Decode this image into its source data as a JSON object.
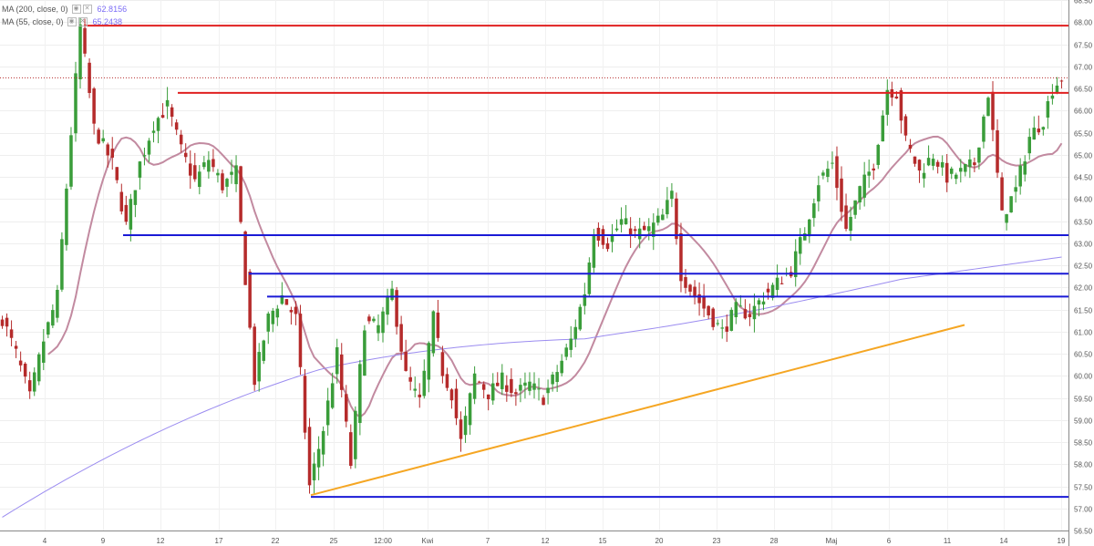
{
  "legend": {
    "ma200": {
      "label": "MA (200, close, 0)",
      "value": "62.8156",
      "color": "#7b6cf6"
    },
    "ma55": {
      "label": "MA (55, close, 0)",
      "value": "65.2438",
      "color": "#7b6cf6"
    }
  },
  "colors": {
    "up": "#3a9d3a",
    "down": "#b52b2b",
    "resistance": "#e02020",
    "support": "#1a1ad6",
    "trend": "#f5a623",
    "ma55": "#c28aa0",
    "ma200": "#9b8cf0",
    "last_price": "#b52b2b"
  },
  "chart_data": {
    "type": "candlestick",
    "y_axis": {
      "min": 56.5,
      "max": 68.5,
      "ticks": [
        "68.50",
        "68.00",
        "67.50",
        "67.00",
        "66.50",
        "66.00",
        "65.50",
        "65.00",
        "64.50",
        "64.00",
        "63.50",
        "63.00",
        "62.50",
        "62.00",
        "61.50",
        "61.00",
        "60.50",
        "60.00",
        "59.50",
        "59.00",
        "58.50",
        "58.00",
        "57.50",
        "57.00",
        "56.50"
      ]
    },
    "x_axis": {
      "labels": [
        "4",
        "9",
        "12",
        "17",
        "22",
        "25",
        "12:00",
        "Kwi",
        "7",
        "12",
        "15",
        "20",
        "23",
        "28",
        "Maj",
        "6",
        "11",
        "14",
        "19"
      ]
    },
    "grid": true,
    "price_levels": [
      {
        "value": 67.92,
        "label": "67.92",
        "role": "resistance"
      },
      {
        "value": 66.4,
        "label": "66.40",
        "role": "resistance"
      },
      {
        "value": 63.18,
        "label": "63.18",
        "role": "support"
      },
      {
        "value": 62.31,
        "label": "62.31",
        "role": "support"
      },
      {
        "value": 61.79,
        "label": "61.79",
        "role": "support"
      },
      {
        "value": 57.26,
        "label": "57.26",
        "role": "support"
      }
    ],
    "last_price": {
      "value": 66.74,
      "label": "66.74"
    },
    "trendline": {
      "from": {
        "bar": 68,
        "price": 57.3
      },
      "to": {
        "bar": 212,
        "price": 61.15
      }
    },
    "series": [
      {
        "name": "MA (55, close, 0)",
        "kind": "ma55"
      },
      {
        "name": "MA (200, close, 0)",
        "kind": "ma200"
      }
    ],
    "close_anchors": [
      [
        0,
        61.3
      ],
      [
        3,
        60.5
      ],
      [
        6,
        59.5
      ],
      [
        9,
        60.8
      ],
      [
        12,
        61.8
      ],
      [
        15,
        65.5
      ],
      [
        17,
        67.9
      ],
      [
        20,
        65.6
      ],
      [
        24,
        64.8
      ],
      [
        27,
        63.4
      ],
      [
        30,
        64.8
      ],
      [
        33,
        65.7
      ],
      [
        36,
        66.1
      ],
      [
        39,
        65.1
      ],
      [
        42,
        64.4
      ],
      [
        45,
        64.9
      ],
      [
        48,
        64.3
      ],
      [
        51,
        64.6
      ],
      [
        53,
        62.2
      ],
      [
        55,
        59.9
      ],
      [
        58,
        61.3
      ],
      [
        61,
        61.8
      ],
      [
        64,
        61.3
      ],
      [
        67,
        57.5
      ],
      [
        70,
        58.8
      ],
      [
        73,
        60.5
      ],
      [
        76,
        58.0
      ],
      [
        79,
        61.2
      ],
      [
        82,
        61.1
      ],
      [
        85,
        61.9
      ],
      [
        88,
        60.0
      ],
      [
        91,
        59.4
      ],
      [
        94,
        61.3
      ],
      [
        96,
        60.1
      ],
      [
        98,
        59.6
      ],
      [
        100,
        58.5
      ],
      [
        103,
        60.0
      ],
      [
        106,
        59.6
      ],
      [
        109,
        59.9
      ],
      [
        112,
        59.6
      ],
      [
        115,
        59.8
      ],
      [
        118,
        59.5
      ],
      [
        121,
        60.1
      ],
      [
        124,
        60.8
      ],
      [
        127,
        61.9
      ],
      [
        129,
        63.3
      ],
      [
        132,
        63.0
      ],
      [
        135,
        63.5
      ],
      [
        138,
        63.2
      ],
      [
        141,
        63.3
      ],
      [
        144,
        63.6
      ],
      [
        146,
        64.1
      ],
      [
        148,
        62.3
      ],
      [
        151,
        61.8
      ],
      [
        154,
        61.4
      ],
      [
        157,
        61.0
      ],
      [
        160,
        61.5
      ],
      [
        163,
        61.4
      ],
      [
        166,
        61.8
      ],
      [
        169,
        62.1
      ],
      [
        172,
        62.4
      ],
      [
        175,
        63.3
      ],
      [
        178,
        64.4
      ],
      [
        181,
        64.8
      ],
      [
        184,
        63.3
      ],
      [
        187,
        64.2
      ],
      [
        190,
        64.8
      ],
      [
        193,
        66.5
      ],
      [
        195,
        66.4
      ],
      [
        197,
        65.3
      ],
      [
        200,
        64.6
      ],
      [
        203,
        65.0
      ],
      [
        206,
        64.5
      ],
      [
        209,
        64.6
      ],
      [
        212,
        64.8
      ],
      [
        215,
        66.4
      ],
      [
        218,
        63.6
      ],
      [
        221,
        64.2
      ],
      [
        224,
        65.4
      ],
      [
        227,
        65.8
      ],
      [
        229,
        66.5
      ],
      [
        231,
        66.74
      ]
    ]
  }
}
